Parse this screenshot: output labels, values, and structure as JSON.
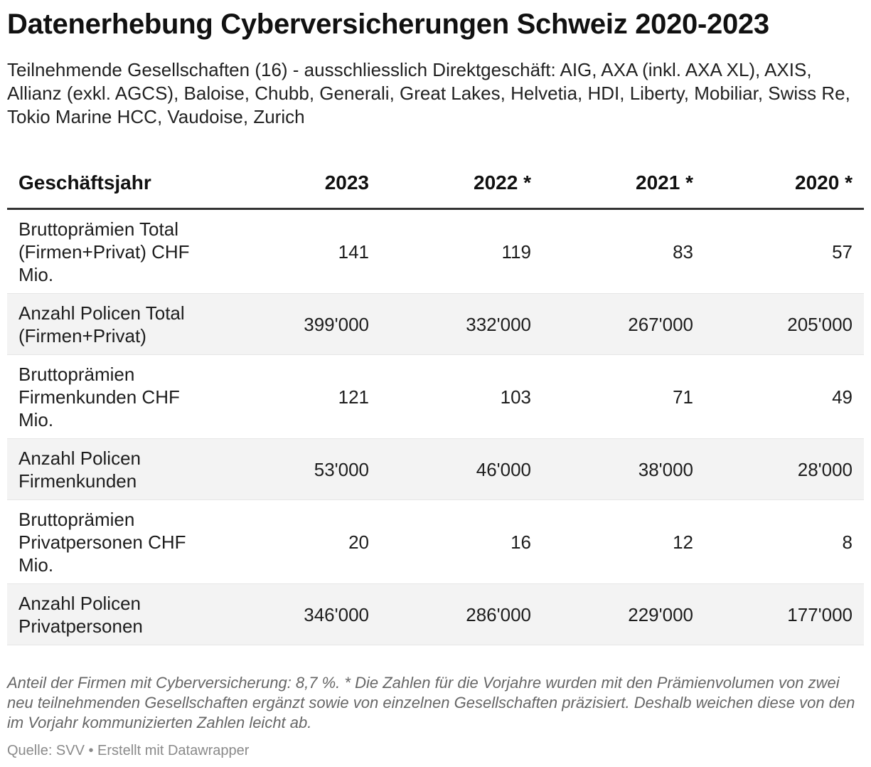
{
  "header": {
    "title": "Datenerhebung Cyberversicherungen Schweiz 2020-2023",
    "subtitle": "Teilnehmende Gesellschaften (16) - ausschliesslich Direktgeschäft: AIG, AXA (inkl. AXA XL), AXIS, Allianz (exkl. AGCS), Baloise, Chubb, Generali, Great Lakes, Helvetia, HDI, Liberty, Mobiliar, Swiss Re, Tokio Marine HCC, Vaudoise, Zurich"
  },
  "chart_data": {
    "type": "table",
    "columns": [
      "Geschäftsjahr",
      "2023",
      "2022 *",
      "2021 *",
      "2020 *"
    ],
    "rows": [
      [
        "Bruttoprämien Total (Firmen+Privat) CHF Mio.",
        "141",
        "119",
        "83",
        "57"
      ],
      [
        "Anzahl Policen Total (Firmen+Privat)",
        "399'000",
        "332'000",
        "267'000",
        "205'000"
      ],
      [
        "Bruttoprämien Firmenkunden CHF Mio.",
        "121",
        "103",
        "71",
        "49"
      ],
      [
        "Anzahl Policen Firmenkunden",
        "53'000",
        "46'000",
        "38'000",
        "28'000"
      ],
      [
        "Bruttoprämien Privatpersonen CHF Mio.",
        "20",
        "16",
        "12",
        "8"
      ],
      [
        "Anzahl Policen Privatpersonen",
        "346'000",
        "286'000",
        "229'000",
        "177'000"
      ]
    ]
  },
  "footer": {
    "notes": "Anteil der Firmen mit Cyberversicherung: 8,7 %. * Die Zahlen für die Vorjahre wurden mit den Prämienvolumen von zwei neu teilnehmenden Gesellschaften ergänzt sowie von einzelnen Gesellschaften präzisiert. Deshalb weichen diese von den im Vorjahr kommunizierten Zahlen leicht ab.",
    "source": "Quelle: SVV • Erstellt mit Datawrapper"
  }
}
